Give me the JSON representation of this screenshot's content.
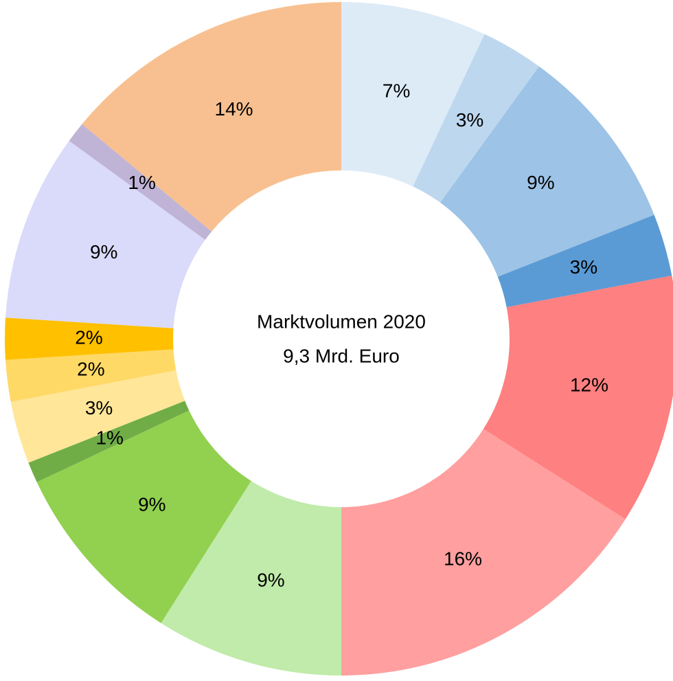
{
  "chart_data": {
    "type": "donut",
    "center_label": [
      "Marktvolumen 2020",
      "9,3 Mrd. Euro"
    ],
    "values": [
      7,
      3,
      9,
      3,
      12,
      16,
      9,
      9,
      1,
      3,
      2,
      2,
      9,
      1,
      14
    ],
    "value_labels": [
      "7%",
      "3%",
      "9%",
      "3%",
      "12%",
      "16%",
      "9%",
      "9%",
      "1%",
      "3%",
      "2%",
      "2%",
      "9%",
      "1%",
      "14%"
    ],
    "colors": [
      "#ddebf7",
      "#bdd7ee",
      "#9dc3e6",
      "#5b9bd5",
      "#ff8080",
      "#ff9f9f",
      "#c0ebaa",
      "#92d050",
      "#70ad47",
      "#ffe699",
      "#ffd966",
      "#ffc000",
      "#dadafa",
      "#c0b4d6",
      "#f8c090"
    ]
  }
}
